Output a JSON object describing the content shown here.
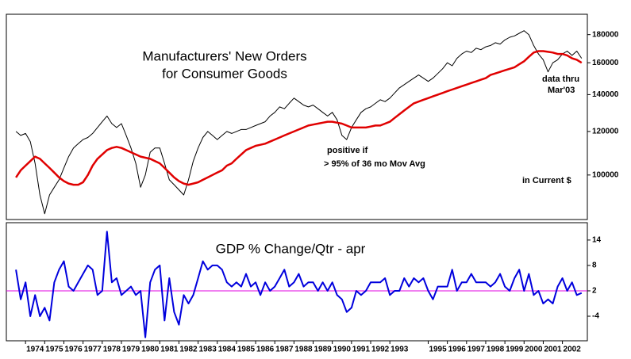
{
  "chart_data": [
    {
      "type": "line",
      "title": [
        "Manufacturers' New Orders",
        "for Consumer Goods"
      ],
      "annotations": [
        [
          "data thru",
          "Mar'03"
        ],
        [
          "positive if",
          "> 95% of 36 mo Mov Avg"
        ],
        [
          "in Current $"
        ]
      ],
      "log_scale": true,
      "ylim": [
        83000,
        196000
      ],
      "yticks": [
        100000,
        120000,
        140000,
        160000,
        180000
      ],
      "xlim": [
        1973.0,
        2003.3
      ],
      "x": [
        1973.5,
        1973.75,
        1974,
        1974.25,
        1974.5,
        1974.75,
        1975,
        1975.25,
        1975.5,
        1975.75,
        1976,
        1976.25,
        1976.5,
        1976.75,
        1977,
        1977.25,
        1977.5,
        1977.75,
        1978,
        1978.25,
        1978.5,
        1978.75,
        1979,
        1979.25,
        1979.5,
        1979.75,
        1980,
        1980.25,
        1980.5,
        1980.75,
        1981,
        1981.25,
        1981.5,
        1981.75,
        1982,
        1982.25,
        1982.5,
        1982.75,
        1983,
        1983.25,
        1983.5,
        1983.75,
        1984,
        1984.25,
        1984.5,
        1984.75,
        1985,
        1985.25,
        1985.5,
        1985.75,
        1986,
        1986.25,
        1986.5,
        1986.75,
        1987,
        1987.25,
        1987.5,
        1987.75,
        1988,
        1988.25,
        1988.5,
        1988.75,
        1989,
        1989.25,
        1989.5,
        1989.75,
        1990,
        1990.25,
        1990.5,
        1990.75,
        1991,
        1991.25,
        1991.5,
        1991.75,
        1992,
        1992.25,
        1992.5,
        1992.75,
        1993,
        1993.25,
        1993.5,
        1993.75,
        1994,
        1994.25,
        1994.5,
        1994.75,
        1995,
        1995.25,
        1995.5,
        1995.75,
        1996,
        1996.25,
        1996.5,
        1996.75,
        1997,
        1997.25,
        1997.5,
        1997.75,
        1998,
        1998.25,
        1998.5,
        1998.75,
        1999,
        1999.25,
        1999.5,
        1999.75,
        2000,
        2000.25,
        2000.5,
        2000.75,
        2001,
        2001.25,
        2001.5,
        2001.75,
        2002,
        2002.25,
        2002.5,
        2002.75,
        2003
      ],
      "series": [
        {
          "color": "#000000",
          "width": 1,
          "values": [
            120000,
            118000,
            119000,
            115000,
            105000,
            92000,
            85000,
            92000,
            95000,
            98000,
            103000,
            108000,
            112000,
            114000,
            116000,
            117000,
            119000,
            122000,
            125000,
            128000,
            124000,
            122000,
            124000,
            118000,
            112000,
            105000,
            95000,
            100000,
            110000,
            112000,
            112000,
            105000,
            98000,
            96000,
            94000,
            92000,
            98000,
            106000,
            112000,
            117000,
            120000,
            118000,
            116000,
            118000,
            120000,
            119000,
            120000,
            121000,
            121000,
            122000,
            123000,
            124000,
            125000,
            128000,
            130000,
            133000,
            132000,
            135000,
            138000,
            136000,
            134000,
            133000,
            134000,
            132000,
            130000,
            128000,
            130000,
            126000,
            118000,
            116000,
            122000,
            126000,
            130000,
            132000,
            133000,
            135000,
            137000,
            136000,
            138000,
            141000,
            144000,
            146000,
            148000,
            150000,
            152000,
            150000,
            148000,
            150000,
            153000,
            156000,
            160000,
            158000,
            163000,
            166000,
            168000,
            167000,
            170000,
            169000,
            171000,
            172000,
            174000,
            173000,
            176000,
            178000,
            179000,
            181000,
            183000,
            180000,
            172000,
            166000,
            162000,
            154000,
            160000,
            162000,
            166000,
            168000,
            165000,
            168000,
            163000
          ]
        },
        {
          "color": "#e00000",
          "width": 2.5,
          "values": [
            99000,
            102000,
            104000,
            106000,
            108000,
            107000,
            105000,
            103000,
            101000,
            99000,
            97500,
            96500,
            96000,
            96000,
            97000,
            100000,
            104000,
            107000,
            109000,
            111000,
            112000,
            112500,
            112000,
            111000,
            110000,
            109000,
            108000,
            107500,
            107000,
            106000,
            105000,
            103000,
            101000,
            99000,
            97500,
            96500,
            96000,
            96500,
            97000,
            98000,
            99000,
            100000,
            101000,
            102000,
            104000,
            105000,
            107000,
            109000,
            111000,
            112000,
            113000,
            113500,
            114000,
            115000,
            116000,
            117000,
            118000,
            119000,
            120000,
            121000,
            122000,
            123000,
            123500,
            124000,
            124500,
            125000,
            125000,
            124500,
            124000,
            123000,
            122000,
            122000,
            122000,
            122000,
            122500,
            123000,
            123000,
            124000,
            125000,
            127000,
            129000,
            131000,
            133000,
            135000,
            136000,
            137000,
            138000,
            139000,
            140000,
            141000,
            142000,
            143000,
            144000,
            145000,
            146000,
            147000,
            148000,
            149000,
            150000,
            152000,
            153000,
            154000,
            155000,
            156000,
            157000,
            159000,
            161000,
            164000,
            167000,
            168000,
            168000,
            167500,
            167000,
            166000,
            166000,
            165000,
            163000,
            162000,
            160000
          ]
        }
      ]
    },
    {
      "type": "line",
      "title": "GDP % Change/Qtr - apr",
      "ylim": [
        -9.8,
        18.1
      ],
      "yticks": [
        -4,
        2,
        8,
        14
      ],
      "reference_line": {
        "value": 2,
        "color": "#e000e0"
      },
      "xlim": [
        1973.0,
        2003.3
      ],
      "xticks": [
        1974,
        1975,
        1976,
        1977,
        1978,
        1979,
        1980,
        1981,
        1982,
        1983,
        1984,
        1985,
        1986,
        1987,
        1988,
        1989,
        1990,
        1991,
        1992,
        1993,
        1995,
        1996,
        1997,
        1998,
        1999,
        2000,
        2001,
        2002
      ],
      "x": [
        1973.5,
        1973.75,
        1974,
        1974.25,
        1974.5,
        1974.75,
        1975,
        1975.25,
        1975.5,
        1975.75,
        1976,
        1976.25,
        1976.5,
        1976.75,
        1977,
        1977.25,
        1977.5,
        1977.75,
        1978,
        1978.25,
        1978.5,
        1978.75,
        1979,
        1979.25,
        1979.5,
        1979.75,
        1980,
        1980.25,
        1980.5,
        1980.75,
        1981,
        1981.25,
        1981.5,
        1981.75,
        1982,
        1982.25,
        1982.5,
        1982.75,
        1983,
        1983.25,
        1983.5,
        1983.75,
        1984,
        1984.25,
        1984.5,
        1984.75,
        1985,
        1985.25,
        1985.5,
        1985.75,
        1986,
        1986.25,
        1986.5,
        1986.75,
        1987,
        1987.25,
        1987.5,
        1987.75,
        1988,
        1988.25,
        1988.5,
        1988.75,
        1989,
        1989.25,
        1989.5,
        1989.75,
        1990,
        1990.25,
        1990.5,
        1990.75,
        1991,
        1991.25,
        1991.5,
        1991.75,
        1992,
        1992.25,
        1992.5,
        1992.75,
        1993,
        1993.25,
        1993.5,
        1993.75,
        1994,
        1994.25,
        1994.5,
        1994.75,
        1995,
        1995.25,
        1995.5,
        1995.75,
        1996,
        1996.25,
        1996.5,
        1996.75,
        1997,
        1997.25,
        1997.5,
        1997.75,
        1998,
        1998.25,
        1998.5,
        1998.75,
        1999,
        1999.25,
        1999.5,
        1999.75,
        2000,
        2000.25,
        2000.5,
        2000.75,
        2001,
        2001.25,
        2001.5,
        2001.75,
        2002,
        2002.25,
        2002.5,
        2002.75,
        2003
      ],
      "series": [
        {
          "color": "#0000dd",
          "width": 2,
          "values": [
            7,
            0,
            4,
            -4,
            1,
            -4,
            -2,
            -5,
            4,
            7,
            9,
            3,
            2,
            4,
            6,
            8,
            7,
            1,
            2,
            16,
            4,
            5,
            1,
            2,
            3,
            1,
            2,
            -9,
            4,
            7,
            8,
            -5,
            5,
            -3,
            -6,
            1,
            -1,
            1,
            5,
            9,
            7,
            8,
            8,
            7,
            4,
            3,
            4,
            3,
            6,
            3,
            4,
            1,
            4,
            2,
            3,
            5,
            7,
            3,
            4,
            6,
            3,
            4,
            4,
            2,
            4,
            2,
            4,
            1,
            0,
            -3,
            -2,
            2,
            1,
            2,
            4,
            4,
            4,
            5,
            1,
            2,
            2,
            5,
            3,
            5,
            4,
            5,
            2,
            0,
            3,
            3,
            3,
            7,
            2,
            4,
            4,
            6,
            4,
            4,
            4,
            3,
            4,
            6,
            3,
            2,
            5,
            7,
            2,
            6,
            1,
            2,
            -1,
            0,
            -1,
            3,
            5,
            2,
            4,
            1,
            1.5
          ]
        }
      ]
    }
  ]
}
